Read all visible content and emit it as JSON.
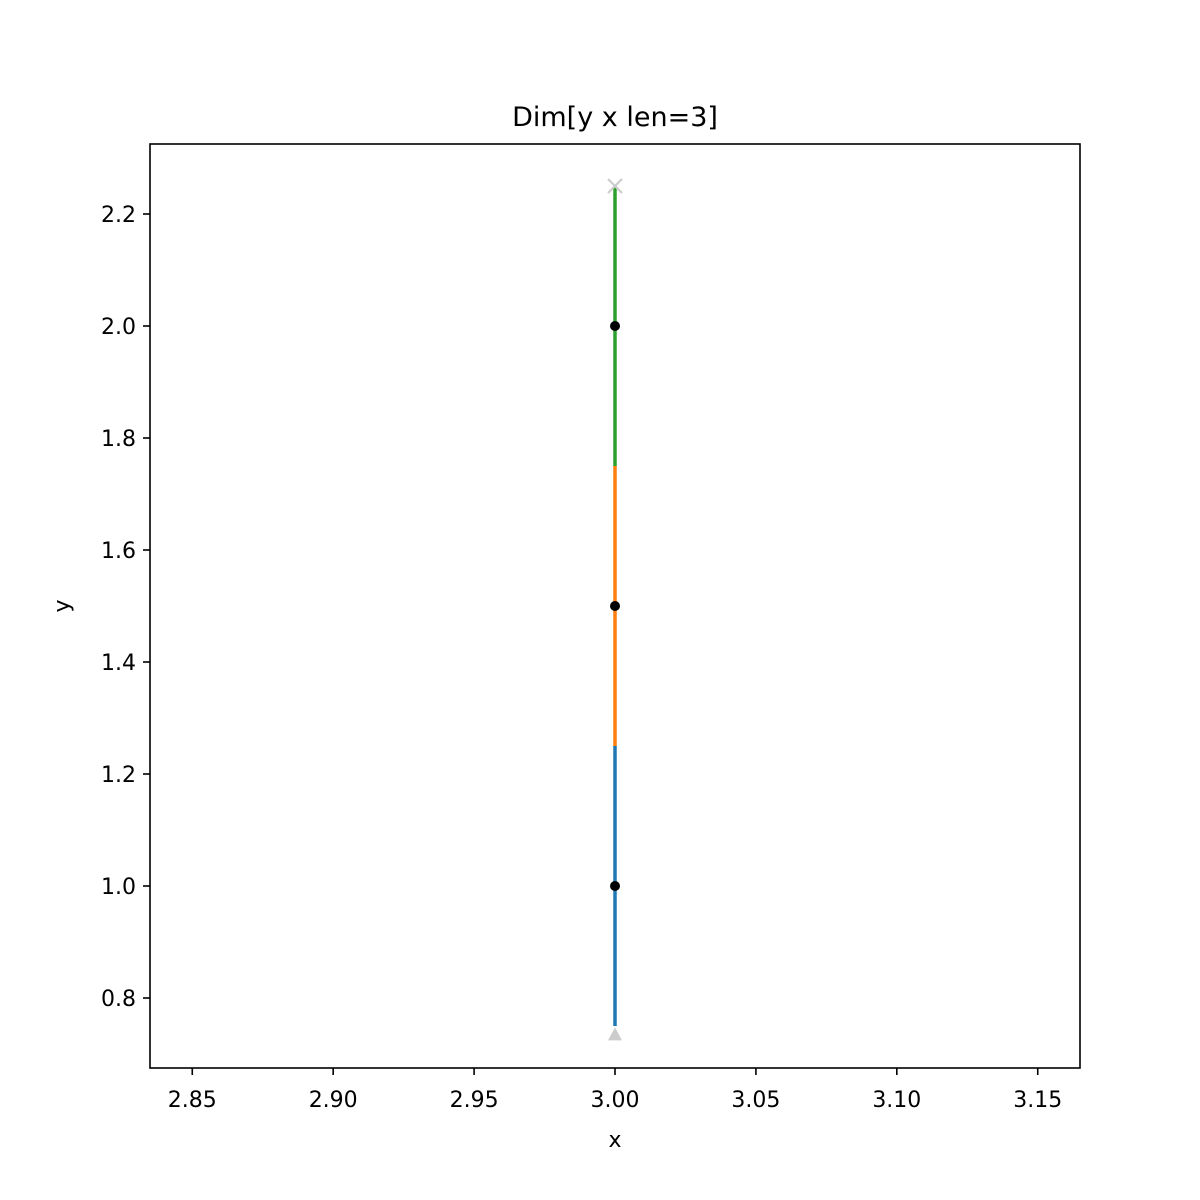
{
  "chart_data": {
    "type": "line",
    "title": "Dim[y x len=3]",
    "xlabel": "x",
    "ylabel": "y",
    "xlim": [
      2.835,
      3.165
    ],
    "ylim": [
      0.675,
      2.325
    ],
    "xticks": [
      2.85,
      2.9,
      2.95,
      3.0,
      3.05,
      3.1,
      3.15
    ],
    "xtick_labels": [
      "2.85",
      "2.90",
      "2.95",
      "3.00",
      "3.05",
      "3.10",
      "3.15"
    ],
    "yticks": [
      0.8,
      1.0,
      1.2,
      1.4,
      1.6,
      1.8,
      2.0,
      2.2
    ],
    "ytick_labels": [
      "0.8",
      "1.0",
      "1.2",
      "1.4",
      "1.6",
      "1.8",
      "2.0",
      "2.2"
    ],
    "grid": false,
    "series": [
      {
        "x": [
          3.0,
          3.0
        ],
        "y": [
          0.75,
          1.25
        ],
        "color": "#1f77b4"
      },
      {
        "x": [
          3.0,
          3.0
        ],
        "y": [
          1.25,
          1.75
        ],
        "color": "#ff7f0e"
      },
      {
        "x": [
          3.0,
          3.0
        ],
        "y": [
          1.75,
          2.25
        ],
        "color": "#2ca02c"
      }
    ],
    "points": [
      {
        "x": 3.0,
        "y": 1.0,
        "marker": "dot",
        "color": "#000000"
      },
      {
        "x": 3.0,
        "y": 1.5,
        "marker": "dot",
        "color": "#000000"
      },
      {
        "x": 3.0,
        "y": 2.0,
        "marker": "dot",
        "color": "#000000"
      }
    ],
    "end_markers": [
      {
        "x": 3.0,
        "y": 0.735,
        "marker": "triangle-up",
        "color": "#cccccc"
      },
      {
        "x": 3.0,
        "y": 2.25,
        "marker": "x",
        "color": "#cccccc"
      }
    ]
  }
}
